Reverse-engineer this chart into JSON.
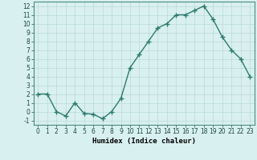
{
  "x": [
    0,
    1,
    2,
    3,
    4,
    5,
    6,
    7,
    8,
    9,
    10,
    11,
    12,
    13,
    14,
    15,
    16,
    17,
    18,
    19,
    20,
    21,
    22,
    23
  ],
  "y": [
    2,
    2,
    0,
    -0.5,
    1,
    -0.2,
    -0.3,
    -0.8,
    0,
    1.5,
    5,
    6.5,
    8,
    9.5,
    10,
    11,
    11,
    11.5,
    12,
    10.5,
    8.5,
    7,
    6,
    4
  ],
  "line_color": "#2d7a6e",
  "marker": "+",
  "marker_size": 4,
  "bg_color": "#d9f0f0",
  "grid_color": "#b8d8d8",
  "xlabel": "Humidex (Indice chaleur)",
  "xlim": [
    -0.5,
    23.5
  ],
  "ylim": [
    -1.5,
    12.5
  ],
  "yticks": [
    -1,
    0,
    1,
    2,
    3,
    4,
    5,
    6,
    7,
    8,
    9,
    10,
    11,
    12
  ],
  "xticks": [
    0,
    1,
    2,
    3,
    4,
    5,
    6,
    7,
    8,
    9,
    10,
    11,
    12,
    13,
    14,
    15,
    16,
    17,
    18,
    19,
    20,
    21,
    22,
    23
  ],
  "xlabel_fontsize": 6.5,
  "tick_fontsize": 5.5,
  "line_width": 1.0
}
